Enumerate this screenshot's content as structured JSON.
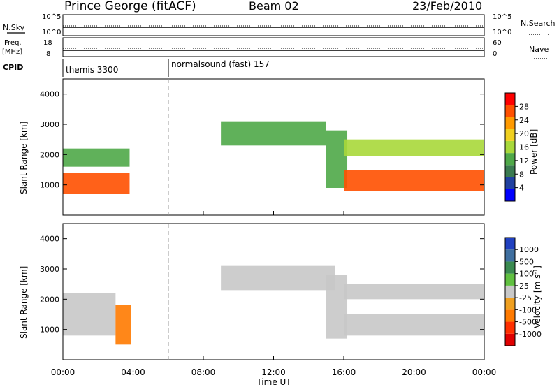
{
  "header": {
    "station": "Prince George (fitACF)",
    "beam": "Beam 02",
    "date": "23/Feb/2010"
  },
  "nsky_panel": {
    "left_label": "N.Sky",
    "left_ticks": [
      "10^5",
      "10^0"
    ],
    "right_label": "N.Search",
    "right_ticks": [
      "10^5",
      "10^0"
    ]
  },
  "freq_panel": {
    "left_label_1": "Freq.",
    "left_label_2": "[MHz]",
    "left_ticks": [
      "18",
      "8"
    ],
    "right_label": "Nave",
    "right_ticks": [
      "60",
      "0"
    ]
  },
  "cpid_panel": {
    "label": "CPID",
    "segments": [
      {
        "name": "themis 3300",
        "start_hour": 0
      },
      {
        "name": "normalsound (fast) 157",
        "start_hour": 6
      }
    ]
  },
  "x_axis": {
    "label": "Time UT",
    "ticks": [
      "00:00",
      "04:00",
      "08:00",
      "12:00",
      "16:00",
      "20:00",
      "00:00"
    ]
  },
  "chart_data": [
    {
      "type": "heatmap",
      "title": "Power",
      "ylabel": "Slant Range [km]",
      "xlabel": "Time UT",
      "xlim_hours": [
        0,
        24
      ],
      "ylim": [
        0,
        4500
      ],
      "yticks": [
        1000,
        2000,
        3000,
        4000
      ],
      "colorbar": {
        "label": "Power [dB]",
        "ticks": [
          "28",
          "24",
          "20",
          "16",
          "12",
          "8",
          "4"
        ],
        "colors": [
          "#0000ff",
          "#2040a0",
          "#3a7a50",
          "#4fa848",
          "#a8d83a",
          "#f0d020",
          "#ff9a00",
          "#ff5000",
          "#ff0000"
        ]
      },
      "echo_regions": [
        {
          "t0": 0.0,
          "t1": 3.8,
          "r0": 700,
          "r1": 1400,
          "level": 26
        },
        {
          "t0": 0.0,
          "t1": 3.8,
          "r0": 1600,
          "r1": 2200,
          "level": 14
        },
        {
          "t0": 9.0,
          "t1": 15.0,
          "r0": 2300,
          "r1": 3100,
          "level": 12
        },
        {
          "t0": 15.0,
          "t1": 16.2,
          "r0": 900,
          "r1": 2800,
          "level": 12
        },
        {
          "t0": 16.0,
          "t1": 24.0,
          "r0": 800,
          "r1": 1500,
          "level": 26
        },
        {
          "t0": 16.0,
          "t1": 24.0,
          "r0": 1950,
          "r1": 2500,
          "level": 16
        }
      ]
    },
    {
      "type": "heatmap",
      "title": "Velocity",
      "ylabel": "Slant Range [km]",
      "xlabel": "Time UT",
      "xlim_hours": [
        0,
        24
      ],
      "ylim": [
        0,
        4500
      ],
      "yticks": [
        1000,
        2000,
        3000,
        4000
      ],
      "colorbar": {
        "label": "Velocity [m s^-1]",
        "ticks": [
          "1000",
          "500",
          "100",
          "25",
          "-25",
          "-100",
          "-500",
          "-1000"
        ],
        "colors": [
          "#2040c0",
          "#3f6fa0",
          "#3a8a50",
          "#60c040",
          "#c8c8c8",
          "#f0a020",
          "#ff7a00",
          "#ff3000",
          "#e00000"
        ]
      },
      "echo_regions": [
        {
          "t0": 0.0,
          "t1": 3.0,
          "r0": 800,
          "r1": 2200,
          "level": 0
        },
        {
          "t0": 3.0,
          "t1": 3.9,
          "r0": 500,
          "r1": 1800,
          "level": -300
        },
        {
          "t0": 9.0,
          "t1": 15.5,
          "r0": 2300,
          "r1": 3100,
          "level": 0
        },
        {
          "t0": 15.0,
          "t1": 16.2,
          "r0": 700,
          "r1": 2800,
          "level": 0
        },
        {
          "t0": 16.0,
          "t1": 24.0,
          "r0": 800,
          "r1": 1500,
          "level": 0
        },
        {
          "t0": 16.0,
          "t1": 24.0,
          "r0": 2000,
          "r1": 2500,
          "level": 0
        }
      ]
    }
  ]
}
